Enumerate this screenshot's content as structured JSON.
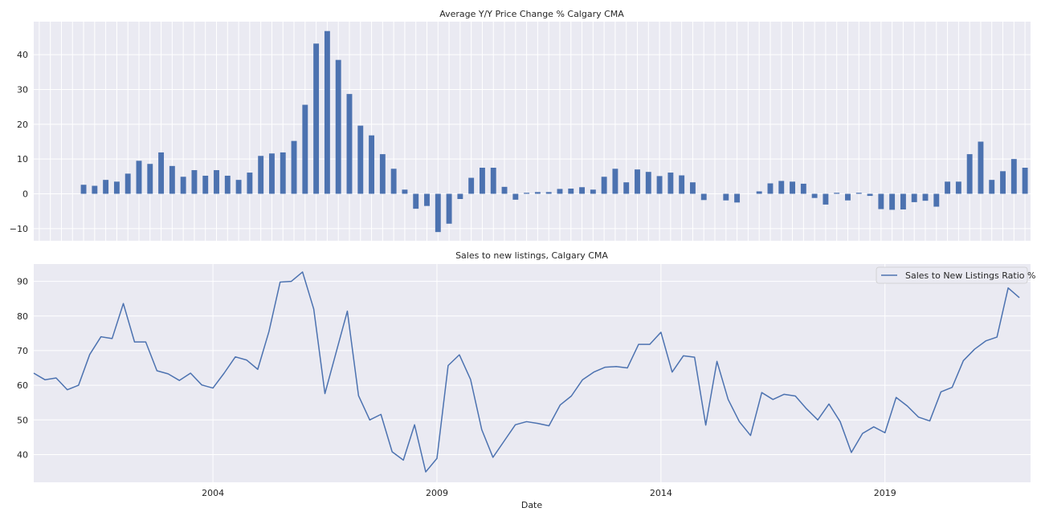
{
  "colors": {
    "bar": "#4c72b0",
    "line": "#4c72b0",
    "panel_bg": "#eaeaf2",
    "grid": "#ffffff",
    "text": "#262626"
  },
  "chart_data": [
    {
      "type": "bar",
      "title": "Average Y/Y Price Change % Calgary CMA",
      "xlabel": "",
      "ylabel": "",
      "x_ticklabels_visible": false,
      "grid": true,
      "ylim": [
        -13.5,
        49.5
      ],
      "yticks": [
        -10,
        0,
        10,
        20,
        30,
        40
      ],
      "ytick_labels": [
        "−10",
        "0",
        "10",
        "20",
        "30",
        "40"
      ],
      "values": [
        null,
        null,
        null,
        null,
        2.6,
        2.3,
        4.0,
        3.5,
        5.8,
        9.5,
        8.6,
        11.9,
        8.0,
        4.9,
        6.8,
        5.2,
        6.8,
        5.2,
        4.0,
        6.1,
        10.9,
        11.6,
        11.9,
        15.2,
        25.6,
        43.2,
        46.8,
        38.5,
        28.7,
        19.6,
        16.8,
        11.4,
        7.2,
        1.2,
        -4.3,
        -3.5,
        -11.0,
        -8.6,
        -1.5,
        4.6,
        7.5,
        7.5,
        2.0,
        -1.7,
        0.3,
        0.5,
        0.5,
        1.4,
        1.5,
        1.9,
        1.2,
        4.9,
        7.2,
        3.3,
        7.0,
        6.3,
        5.1,
        6.1,
        5.3,
        3.3,
        -1.8,
        0.0,
        -1.9,
        -2.5,
        0.0,
        0.7,
        3.0,
        3.7,
        3.5,
        2.9,
        -1.2,
        -3.1,
        0.3,
        -1.9,
        0.3,
        -0.6,
        -4.4,
        -4.6,
        -4.5,
        -2.4,
        -2.0,
        -3.7,
        3.5,
        3.5,
        11.4,
        15.0,
        4.0,
        6.5,
        10.0,
        7.5
      ]
    },
    {
      "type": "line",
      "title": "Sales to new listings, Calgary CMA",
      "xlabel": "Date",
      "ylabel": "",
      "grid": true,
      "legend": "top-right",
      "xlim": [
        2000.0,
        2022.25
      ],
      "ylim": [
        32,
        95
      ],
      "xticks": [
        2004,
        2009,
        2014,
        2019
      ],
      "xtick_labels": [
        "2004",
        "2009",
        "2014",
        "2019"
      ],
      "yticks": [
        40,
        50,
        60,
        70,
        80,
        90
      ],
      "ytick_labels": [
        "40",
        "50",
        "60",
        "70",
        "80",
        "90"
      ],
      "series": [
        {
          "name": "Sales to New Listings Ratio %",
          "x_start": 2000.0,
          "x_step": 0.25,
          "values": [
            63.5,
            61.6,
            62.1,
            58.7,
            60.0,
            68.9,
            74.0,
            73.5,
            83.6,
            72.5,
            72.5,
            64.2,
            63.3,
            61.4,
            63.5,
            60.1,
            59.2,
            63.5,
            68.2,
            67.3,
            64.6,
            75.5,
            89.8,
            90.0,
            92.7,
            82.0,
            57.6,
            69.5,
            81.4,
            57.0,
            50.0,
            51.6,
            40.8,
            38.4,
            48.6,
            35.0,
            38.9,
            65.7,
            68.8,
            61.7,
            47.2,
            39.2,
            43.9,
            48.6,
            49.5,
            49.0,
            48.3,
            54.3,
            56.9,
            61.6,
            63.8,
            65.2,
            65.4,
            65.0,
            71.8,
            71.8,
            75.3,
            63.8,
            68.5,
            68.1,
            48.5,
            66.9,
            55.9,
            49.5,
            45.5,
            57.9,
            55.9,
            57.4,
            56.9,
            53.2,
            50.0,
            54.6,
            49.5,
            40.6,
            46.1,
            48.0,
            46.3,
            56.5,
            54.0,
            50.8,
            49.7,
            58.1,
            59.4,
            67.1,
            70.4,
            72.8,
            73.9,
            88.1,
            85.3
          ]
        }
      ]
    }
  ]
}
